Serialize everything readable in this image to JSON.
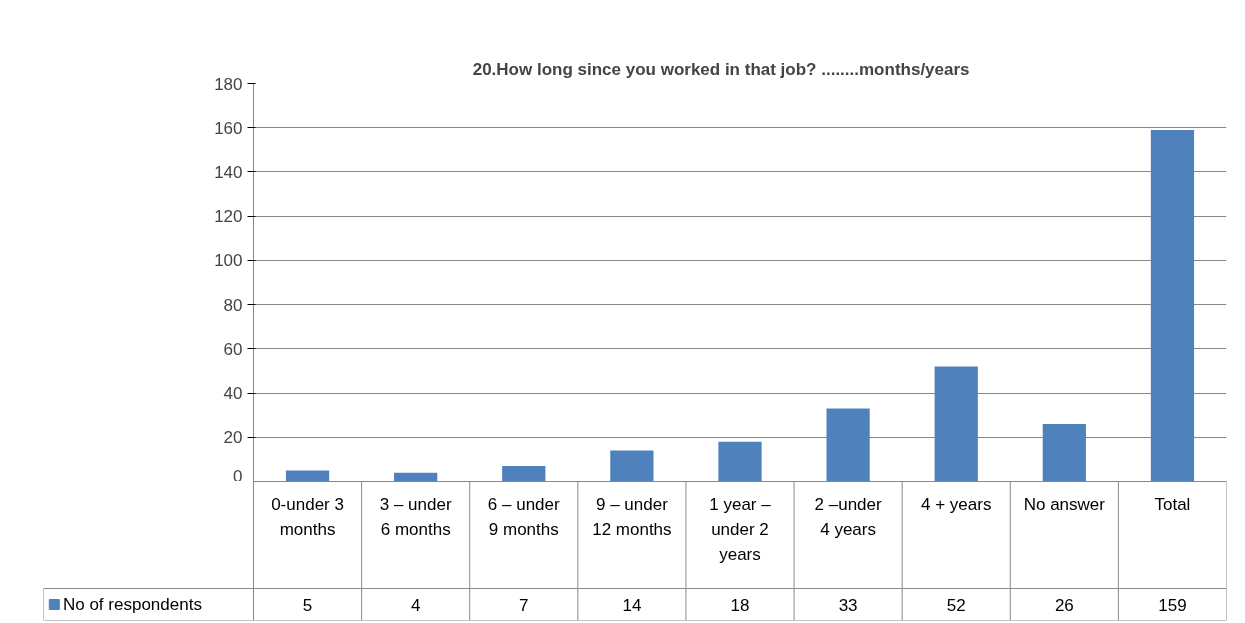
{
  "chart_data": {
    "type": "bar",
    "title": "20.How long since you worked in that job?         ........months/years",
    "categories": [
      "0-under 3 months",
      "3 – under 6 months",
      "6 – under 9 months",
      "9 – under 12 months",
      "1 year – under 2 years",
      "2 –under 4 years",
      "4 + years",
      "No answer",
      "Total"
    ],
    "series": [
      {
        "name": "No of respondents",
        "color": "#4f81bd",
        "values": [
          5,
          4,
          7,
          14,
          18,
          33,
          52,
          26,
          159
        ]
      }
    ],
    "ylim": [
      0,
      180
    ],
    "yticks": [
      0,
      20,
      40,
      60,
      80,
      100,
      120,
      140,
      160,
      180
    ],
    "grid": "y",
    "legend": "bottom",
    "data_labels": true
  }
}
